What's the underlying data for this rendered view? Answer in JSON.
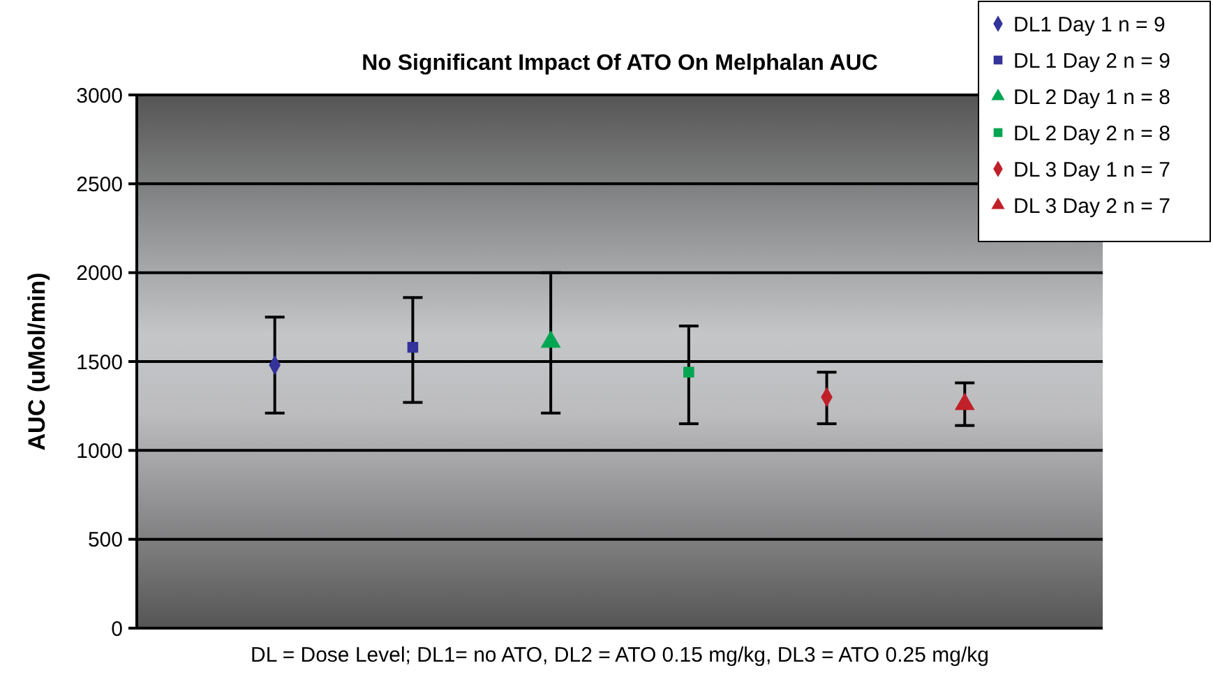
{
  "chart_data": {
    "type": "scatter",
    "title": "No Significant Impact Of ATO On Melphalan AUC",
    "ylabel": "AUC (uMol/min)",
    "annotations": [
      "DL = Dose Level; DL1= no ATO, DL2 = ATO 0.15 mg/kg, DL3 = ATO 0.25 mg/kg"
    ],
    "categories": [
      null,
      null,
      null,
      null,
      null,
      null
    ],
    "ylim": [
      0,
      3000
    ],
    "yticks": [
      0,
      500,
      1000,
      1500,
      2000,
      2500,
      3000
    ],
    "grid": "y",
    "legend": "top right",
    "tick_labels": "y",
    "series": [
      {
        "name": "DL1 Day 1 n = 9",
        "color": "#333399",
        "marker": "diamond",
        "values": [
          1480,
          null,
          null,
          null,
          null,
          null
        ],
        "errors": [
          [
            1210,
            1750
          ],
          null,
          null,
          null,
          null,
          null
        ]
      },
      {
        "name": "DL 1 Day 2 n = 9",
        "color": "#333399",
        "marker": "square",
        "values": [
          null,
          1580,
          null,
          null,
          null,
          null
        ],
        "errors": [
          null,
          [
            1270,
            1860
          ],
          null,
          null,
          null,
          null
        ]
      },
      {
        "name": "DL 2 Day 1 n = 8",
        "color": "#00a651",
        "marker": "triangle",
        "values": [
          null,
          null,
          1610,
          null,
          null,
          null
        ],
        "errors": [
          null,
          null,
          [
            1210,
            2000
          ],
          null,
          null,
          null
        ]
      },
      {
        "name": "DL 2 Day 2 n = 8",
        "color": "#00a651",
        "marker": "square",
        "values": [
          null,
          null,
          null,
          1440,
          null,
          null
        ],
        "errors": [
          null,
          null,
          null,
          [
            1150,
            1700
          ],
          null,
          null
        ]
      },
      {
        "name": "DL 3 Day 1 n = 7",
        "color": "#c0202a",
        "marker": "diamond",
        "values": [
          null,
          null,
          null,
          null,
          1300,
          null
        ],
        "errors": [
          null,
          null,
          null,
          null,
          [
            1150,
            1440
          ],
          null
        ]
      },
      {
        "name": "DL 3 Day 2 n = 7",
        "color": "#c0202a",
        "marker": "triangle",
        "values": [
          null,
          null,
          null,
          null,
          null,
          1260
        ],
        "errors": [
          null,
          null,
          null,
          null,
          null,
          [
            1140,
            1380
          ]
        ]
      }
    ]
  }
}
